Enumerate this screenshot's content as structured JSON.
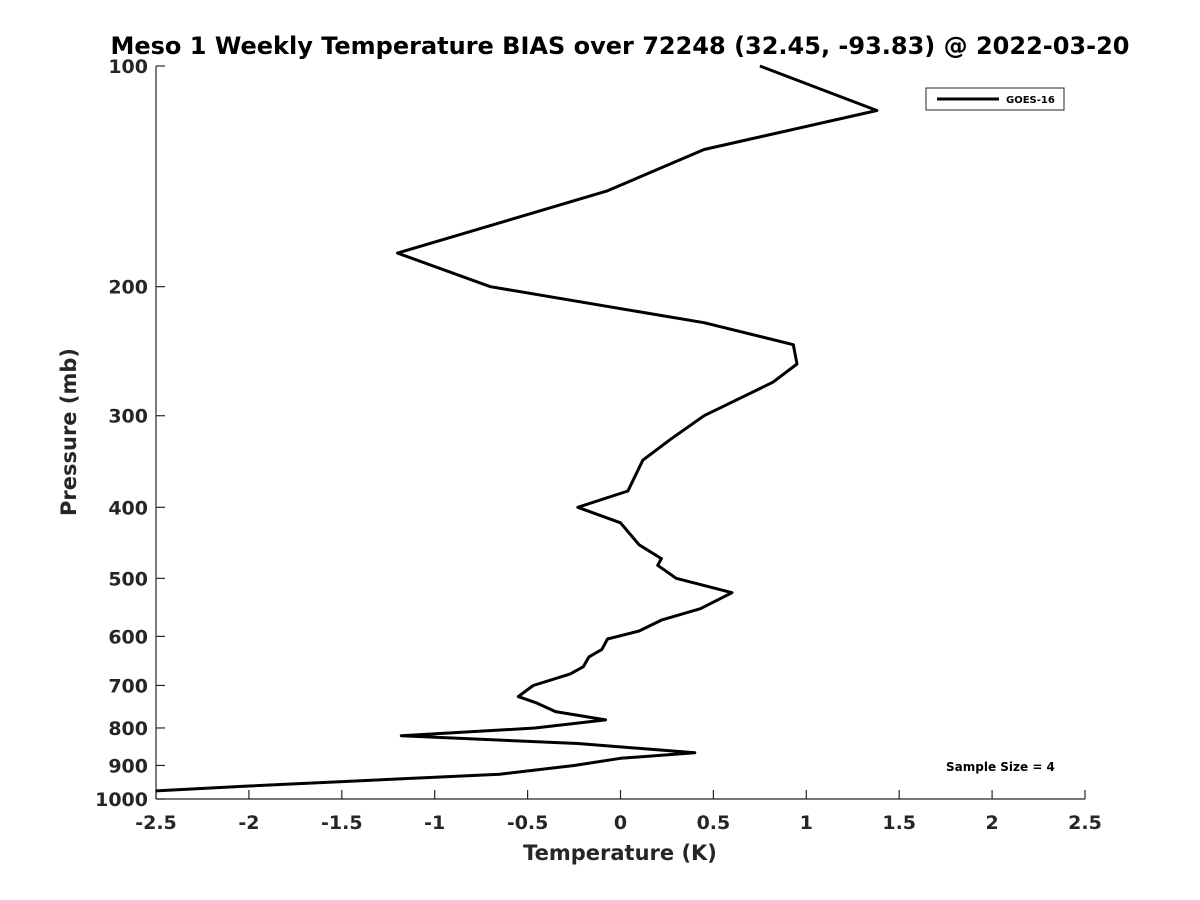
{
  "chart_data": {
    "type": "line",
    "title": "Meso 1 Weekly Temperature BIAS over 72248 (32.45, -93.83) @ 2022-03-20",
    "xlabel": "Temperature (K)",
    "ylabel": "Pressure (mb)",
    "xlim": [
      -2.5,
      2.5
    ],
    "ylim": [
      100,
      1000
    ],
    "y_scale": "log",
    "y_reversed": true,
    "x_ticks": [
      -2.5,
      -2,
      -1.5,
      -1,
      -0.5,
      0,
      0.5,
      1,
      1.5,
      2,
      2.5
    ],
    "x_tick_labels": [
      "-2.5",
      "-2",
      "-1.5",
      "-1",
      "-0.5",
      "0",
      "0.5",
      "1",
      "1.5",
      "2",
      "2.5"
    ],
    "y_ticks": [
      100,
      200,
      300,
      400,
      500,
      600,
      700,
      800,
      900,
      1000
    ],
    "y_tick_labels": [
      "100",
      "200",
      "300",
      "400",
      "500",
      "600",
      "700",
      "800",
      "900",
      "1000"
    ],
    "grid": false,
    "legend": {
      "position": "top-right",
      "entries": [
        "GOES-16"
      ]
    },
    "annotations": [
      "Sample Size = 4"
    ],
    "series": [
      {
        "name": "GOES-16",
        "color": "#000000",
        "points": [
          [
            0.75,
            100
          ],
          [
            1.38,
            115
          ],
          [
            0.45,
            130
          ],
          [
            -0.07,
            148
          ],
          [
            -1.2,
            180
          ],
          [
            -0.7,
            200
          ],
          [
            0.45,
            224
          ],
          [
            0.93,
            240
          ],
          [
            0.95,
            255
          ],
          [
            0.82,
            270
          ],
          [
            0.45,
            300
          ],
          [
            0.27,
            323
          ],
          [
            0.12,
            345
          ],
          [
            0.04,
            380
          ],
          [
            -0.23,
            400
          ],
          [
            0.0,
            420
          ],
          [
            0.1,
            450
          ],
          [
            0.22,
            470
          ],
          [
            0.2,
            480
          ],
          [
            0.3,
            500
          ],
          [
            0.6,
            523
          ],
          [
            0.43,
            550
          ],
          [
            0.22,
            570
          ],
          [
            0.1,
            590
          ],
          [
            -0.07,
            605
          ],
          [
            -0.1,
            625
          ],
          [
            -0.17,
            640
          ],
          [
            -0.2,
            660
          ],
          [
            -0.27,
            675
          ],
          [
            -0.47,
            700
          ],
          [
            -0.55,
            725
          ],
          [
            -0.45,
            740
          ],
          [
            -0.35,
            760
          ],
          [
            -0.08,
            780
          ],
          [
            -0.46,
            800
          ],
          [
            -1.18,
            820
          ],
          [
            -0.23,
            840
          ],
          [
            0.4,
            865
          ],
          [
            0.0,
            880
          ],
          [
            -0.25,
            900
          ],
          [
            -0.65,
            925
          ],
          [
            -2.0,
            960
          ],
          [
            -2.5,
            975
          ]
        ]
      }
    ]
  }
}
